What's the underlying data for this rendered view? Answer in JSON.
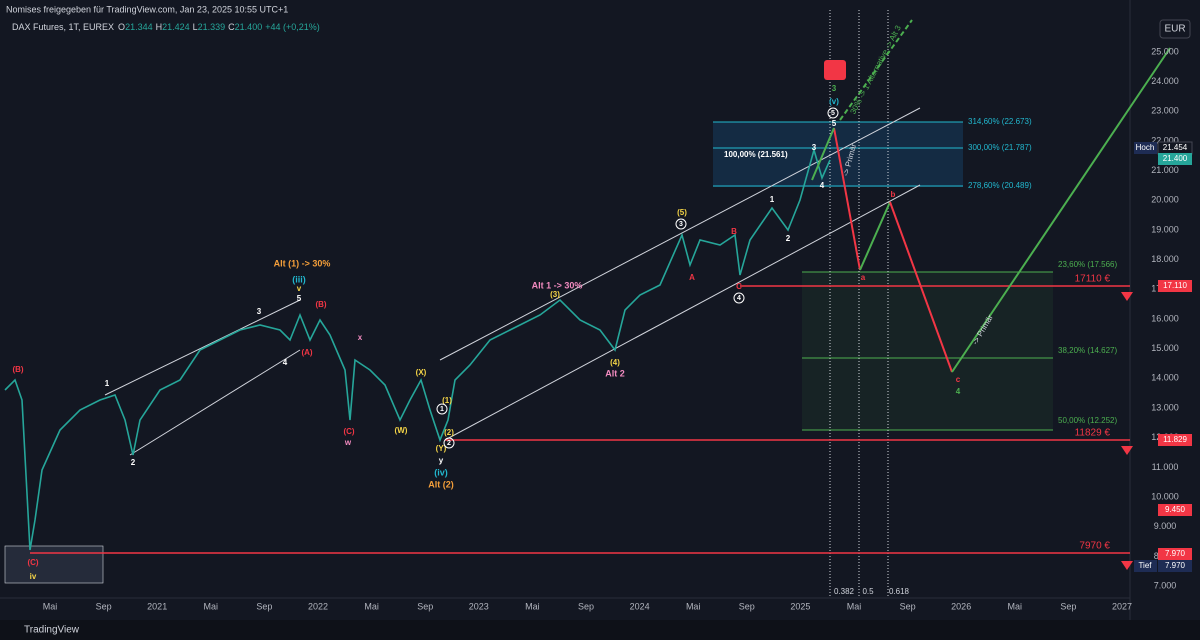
{
  "header": {
    "shared_by": "Nomises freigegeben für TradingView.com, Jan 23, 2025 10:55 UTC+1"
  },
  "legend": {
    "symbol": "DAX Futures, 1T, EUREX",
    "open_label": "O",
    "open": "21.344",
    "high_label": "H",
    "high": "21.424",
    "low_label": "L",
    "low": "21.339",
    "close_label": "C",
    "close": "21.400",
    "change": "+44 (+0,21%)"
  },
  "currency": "EUR",
  "price_axis": [
    "25.000",
    "24.000",
    "23.000",
    "22.000",
    "21.000",
    "20.000",
    "19.000",
    "18.000",
    "17.000",
    "16.000",
    "15.000",
    "14.000",
    "13.000",
    "12.000",
    "11.000",
    "10.000",
    "9.000",
    "8.000",
    "7.000"
  ],
  "time_axis": [
    "Mai",
    "Sep",
    "2021",
    "Mai",
    "Sep",
    "2022",
    "Mai",
    "Sep",
    "2023",
    "Mai",
    "Sep",
    "2024",
    "Mai",
    "Sep",
    "2025",
    "Mai",
    "Sep",
    "2026",
    "Mai",
    "Sep",
    "2027"
  ],
  "price_tags": [
    {
      "label": "Hoch",
      "value": "21.454"
    },
    {
      "value": "21.400",
      "color": "#26a69a"
    },
    {
      "value": "17.110",
      "color": "#f23645"
    },
    {
      "value": "11.829",
      "color": "#f23645"
    },
    {
      "value": "9.450",
      "color": "#f23645"
    },
    {
      "value": "7.970",
      "color": "#f23645"
    },
    {
      "label": "Tief",
      "value": "7.970",
      "color": "#1e2c54"
    }
  ],
  "level_labels": [
    "17110 €",
    "11829 €",
    "7970 €"
  ],
  "fib_upper": [
    "314,60% (22.673)",
    "300,00% (21.787)",
    "278,60% (20.489)"
  ],
  "fib_base": "100,00% (21.561)",
  "fib_lower": [
    "23,60% (17.566)",
    "38,20% (14.627)",
    "50,00% (12.252)"
  ],
  "time_fib": [
    "0.382",
    "0.5",
    "0.618"
  ],
  "rotated_notes": [
    "30% -> 1 Alternative -> Alt 3",
    "-> Primär",
    "-> Primär"
  ],
  "annotations": [
    {
      "text": "(B)",
      "color": "#f23645"
    },
    {
      "text": "(C)",
      "color": "#f23645"
    },
    {
      "text": "iv",
      "color": "#f5d547"
    },
    {
      "text": "1",
      "color": "#ffffff"
    },
    {
      "text": "2",
      "color": "#ffffff"
    },
    {
      "text": "3",
      "color": "#ffffff"
    },
    {
      "text": "4",
      "color": "#ffffff"
    },
    {
      "text": "5",
      "color": "#ffffff"
    },
    {
      "text": "v",
      "color": "#f5d547"
    },
    {
      "text": "(iii)",
      "color": "#22b8cf"
    },
    {
      "text": "Alt (1) -> 30%",
      "color": "#f59f3a"
    },
    {
      "text": "(A)",
      "color": "#f23645"
    },
    {
      "text": "(B)",
      "color": "#f23645"
    },
    {
      "text": "x",
      "color": "#f28bc0"
    },
    {
      "text": "(C)",
      "color": "#f23645"
    },
    {
      "text": "w",
      "color": "#f28bc0"
    },
    {
      "text": "(W)",
      "color": "#f5d547"
    },
    {
      "text": "(X)",
      "color": "#f5d547"
    },
    {
      "text": "(1)",
      "color": "#f5d547"
    },
    {
      "text": "(2)",
      "color": "#f5d547"
    },
    {
      "text": "(Y)",
      "color": "#f5d547"
    },
    {
      "text": "y",
      "color": "#ffffff"
    },
    {
      "text": "(iv)",
      "color": "#22b8cf"
    },
    {
      "text": "Alt (2)",
      "color": "#f59f3a"
    },
    {
      "text": "Alt 1 -> 30%",
      "color": "#f28bc0"
    },
    {
      "text": "(3)",
      "color": "#f5d547"
    },
    {
      "text": "(4)",
      "color": "#f5d547"
    },
    {
      "text": "Alt 2",
      "color": "#f28bc0"
    },
    {
      "text": "(5)",
      "color": "#f5d547"
    },
    {
      "text": "A",
      "color": "#f23645"
    },
    {
      "text": "B",
      "color": "#f23645"
    },
    {
      "text": "C",
      "color": "#f23645"
    },
    {
      "text": "1",
      "color": "#ffffff"
    },
    {
      "text": "2",
      "color": "#ffffff"
    },
    {
      "text": "3",
      "color": "#ffffff"
    },
    {
      "text": "4",
      "color": "#ffffff"
    },
    {
      "text": "5",
      "color": "#ffffff"
    },
    {
      "text": "(v)",
      "color": "#22b8cf"
    },
    {
      "text": "3",
      "color": "#4caf50"
    },
    {
      "text": "a",
      "color": "#f23645"
    },
    {
      "text": "b",
      "color": "#f23645"
    },
    {
      "text": "c",
      "color": "#f23645"
    },
    {
      "text": "4",
      "color": "#4caf50"
    },
    {
      "text": "3",
      "color": "#ffffff",
      "circle": true
    },
    {
      "text": "4",
      "color": "#ffffff",
      "circle": true
    },
    {
      "text": "5",
      "color": "#ffffff",
      "circle": true
    },
    {
      "text": "1",
      "color": "#ffffff",
      "circle": true
    },
    {
      "text": "2",
      "color": "#ffffff",
      "circle": true
    }
  ],
  "footer": {
    "brand": "TradingView"
  }
}
